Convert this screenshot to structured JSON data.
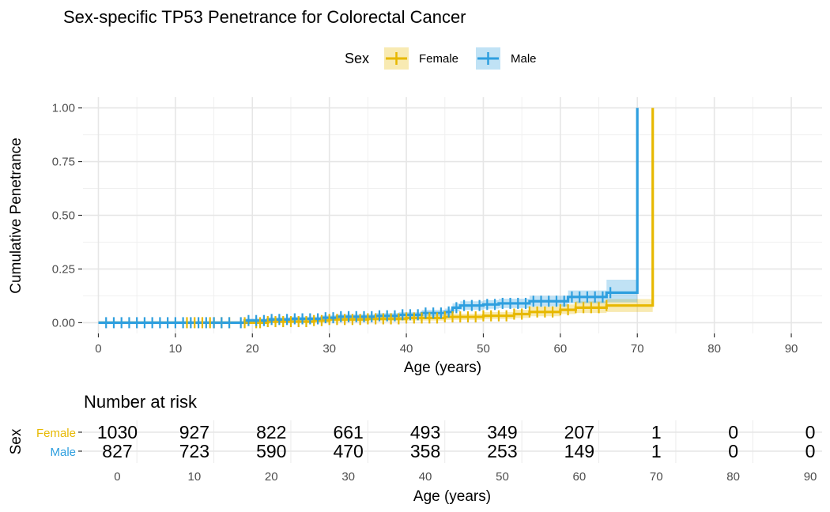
{
  "chart_data": [
    {
      "type": "line",
      "subtype": "step-survival",
      "title": "Sex-specific TP53 Penetrance for Colorectal Cancer",
      "xlabel": "Age (years)",
      "ylabel": "Cumulative Penetrance",
      "xlim": [
        -2,
        94
      ],
      "ylim": [
        -0.05,
        1.05
      ],
      "xticks": [
        0,
        10,
        20,
        30,
        40,
        50,
        60,
        70,
        80,
        90
      ],
      "xtick_labels": [
        "0",
        "10",
        "20",
        "30",
        "40",
        "50",
        "60",
        "70",
        "80",
        "90"
      ],
      "yticks": [
        0,
        0.25,
        0.5,
        0.75,
        1.0
      ],
      "ytick_labels": [
        "0.00",
        "0.25",
        "0.50",
        "0.75",
        "1.00"
      ],
      "grid": true,
      "legend": {
        "title": "Sex",
        "position": "top",
        "entries": [
          "Female",
          "Male"
        ]
      },
      "series": [
        {
          "name": "Female",
          "color": "#E7B800",
          "steps": [
            [
              0,
              0
            ],
            [
              18,
              0
            ],
            [
              22,
              0.005
            ],
            [
              28,
              0.01
            ],
            [
              30,
              0.015
            ],
            [
              35,
              0.018
            ],
            [
              40,
              0.022
            ],
            [
              45,
              0.027
            ],
            [
              50,
              0.032
            ],
            [
              54,
              0.04
            ],
            [
              56,
              0.05
            ],
            [
              60,
              0.06
            ],
            [
              62,
              0.07
            ],
            [
              66,
              0.08
            ],
            [
              72,
              0.08
            ],
            [
              72,
              1.0
            ]
          ],
          "ci_lower": [
            [
              0,
              0
            ],
            [
              18,
              0
            ],
            [
              22,
              0
            ],
            [
              28,
              0
            ],
            [
              30,
              0.005
            ],
            [
              35,
              0.007
            ],
            [
              40,
              0.01
            ],
            [
              45,
              0.013
            ],
            [
              50,
              0.017
            ],
            [
              54,
              0.022
            ],
            [
              56,
              0.03
            ],
            [
              60,
              0.04
            ],
            [
              62,
              0.045
            ],
            [
              66,
              0.05
            ],
            [
              72,
              0.05
            ]
          ],
          "ci_upper": [
            [
              0,
              0
            ],
            [
              18,
              0
            ],
            [
              22,
              0.015
            ],
            [
              28,
              0.022
            ],
            [
              30,
              0.027
            ],
            [
              35,
              0.03
            ],
            [
              40,
              0.035
            ],
            [
              45,
              0.042
            ],
            [
              50,
              0.05
            ],
            [
              54,
              0.06
            ],
            [
              56,
              0.075
            ],
            [
              60,
              0.085
            ],
            [
              62,
              0.1
            ],
            [
              66,
              0.11
            ],
            [
              72,
              0.11
            ]
          ],
          "censor_x": [
            11.5,
            12.5,
            13.5,
            14.5,
            15,
            16,
            17,
            19,
            20.5,
            21,
            22,
            23,
            24,
            25,
            26,
            27,
            28,
            29,
            30,
            31,
            32,
            33,
            34,
            35,
            36,
            37,
            38,
            39,
            40,
            41,
            42,
            43,
            44,
            45,
            46,
            47,
            48,
            49,
            50,
            51,
            52,
            53,
            54,
            55,
            56,
            57,
            58,
            59,
            60,
            61,
            62,
            63,
            64,
            65,
            66
          ]
        },
        {
          "name": "Male",
          "color": "#2E9FDF",
          "steps": [
            [
              0,
              0
            ],
            [
              18,
              0
            ],
            [
              19,
              0.01
            ],
            [
              22,
              0.015
            ],
            [
              25,
              0.018
            ],
            [
              29,
              0.023
            ],
            [
              31,
              0.028
            ],
            [
              36,
              0.032
            ],
            [
              39,
              0.037
            ],
            [
              42,
              0.045
            ],
            [
              45,
              0.05
            ],
            [
              46,
              0.07
            ],
            [
              47,
              0.08
            ],
            [
              50,
              0.085
            ],
            [
              52,
              0.09
            ],
            [
              56,
              0.1
            ],
            [
              61,
              0.12
            ],
            [
              66,
              0.14
            ],
            [
              70,
              0.14
            ],
            [
              70,
              1.0
            ]
          ],
          "ci_lower": [
            [
              0,
              0
            ],
            [
              18,
              0
            ],
            [
              19,
              0
            ],
            [
              22,
              0.005
            ],
            [
              25,
              0.008
            ],
            [
              29,
              0.012
            ],
            [
              31,
              0.016
            ],
            [
              36,
              0.02
            ],
            [
              39,
              0.024
            ],
            [
              42,
              0.03
            ],
            [
              45,
              0.035
            ],
            [
              46,
              0.052
            ],
            [
              47,
              0.06
            ],
            [
              50,
              0.065
            ],
            [
              52,
              0.068
            ],
            [
              56,
              0.076
            ],
            [
              61,
              0.09
            ],
            [
              66,
              0.095
            ],
            [
              70,
              0.095
            ]
          ],
          "ci_upper": [
            [
              0,
              0
            ],
            [
              18,
              0
            ],
            [
              19,
              0.02
            ],
            [
              22,
              0.025
            ],
            [
              25,
              0.028
            ],
            [
              29,
              0.034
            ],
            [
              31,
              0.04
            ],
            [
              36,
              0.045
            ],
            [
              39,
              0.05
            ],
            [
              42,
              0.06
            ],
            [
              45,
              0.066
            ],
            [
              46,
              0.09
            ],
            [
              47,
              0.1
            ],
            [
              50,
              0.105
            ],
            [
              52,
              0.112
            ],
            [
              56,
              0.125
            ],
            [
              61,
              0.15
            ],
            [
              66,
              0.2
            ],
            [
              70,
              0.2
            ]
          ],
          "censor_x": [
            1,
            2,
            3,
            4,
            5,
            6,
            7,
            8,
            9,
            10,
            11,
            12,
            13,
            14,
            15,
            16,
            17,
            18.5,
            19.5,
            20.5,
            21.5,
            22.5,
            23.5,
            24.5,
            25.5,
            26.5,
            27.5,
            28.5,
            29.5,
            30.5,
            31.5,
            32.5,
            33.5,
            34.5,
            35.5,
            36.5,
            37.5,
            38.5,
            39.5,
            40.5,
            41.5,
            42.5,
            43.5,
            44.5,
            45.5,
            46.5,
            47.5,
            48.5,
            49.5,
            50.5,
            51.5,
            52.5,
            53.5,
            54.5,
            55.5,
            56.5,
            57.5,
            58.5,
            59.5,
            60.5,
            61.5,
            62.5,
            63.5,
            64.5,
            65.5,
            66.5
          ]
        }
      ]
    },
    {
      "type": "table",
      "title": "Number at risk",
      "xlabel": "Age (years)",
      "ylabel": "Sex",
      "x": [
        0,
        10,
        20,
        30,
        40,
        50,
        60,
        70,
        80,
        90
      ],
      "xtick_labels": [
        "0",
        "10",
        "20",
        "30",
        "40",
        "50",
        "60",
        "70",
        "80",
        "90"
      ],
      "rows": [
        {
          "name": "Female",
          "color": "#E7B800",
          "values": [
            "1030",
            "927",
            "822",
            "661",
            "493",
            "349",
            "207",
            "1",
            "0",
            "0"
          ]
        },
        {
          "name": "Male",
          "color": "#2E9FDF",
          "values": [
            "827",
            "723",
            "590",
            "470",
            "358",
            "253",
            "149",
            "1",
            "0",
            "0"
          ]
        }
      ]
    }
  ]
}
